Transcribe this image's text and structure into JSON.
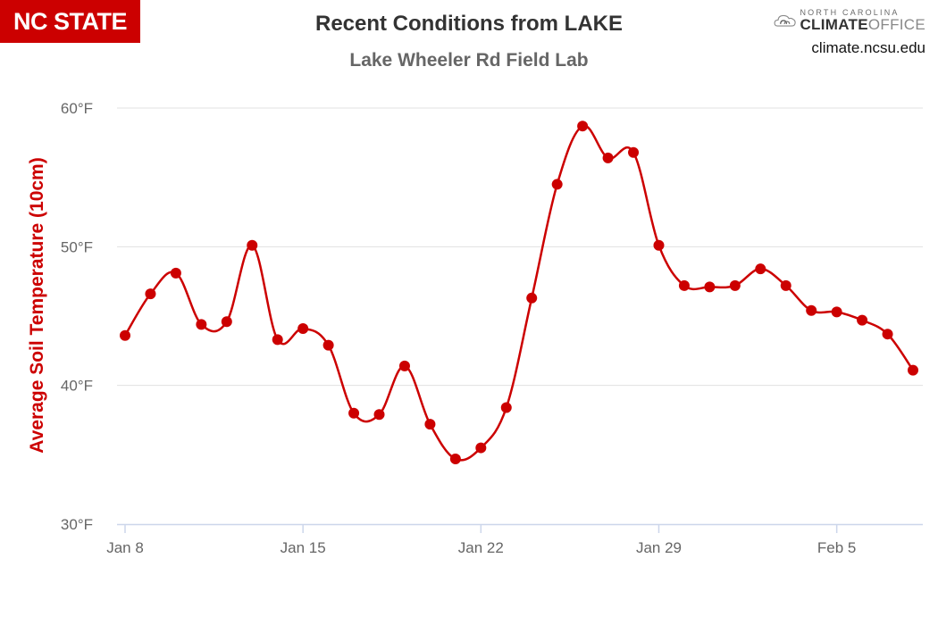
{
  "header": {
    "logo_text": "NC STATE",
    "brand_small": "NORTH CAROLINA",
    "brand_big_a": "CLIMATE",
    "brand_big_b": "OFFICE",
    "brand_url": "climate.ncsu.edu"
  },
  "colors": {
    "series": "#cc0000",
    "grid": "#e0e0e0",
    "axis": "#ccd6eb"
  },
  "chart_data": {
    "type": "line",
    "title": "Recent Conditions from LAKE",
    "subtitle": "Lake Wheeler Rd Field Lab",
    "ylabel": "Average Soil Temperature (10cm)",
    "xlabel": "",
    "ylim": [
      30,
      60
    ],
    "yticks": [
      {
        "value": 30,
        "label": "30°F"
      },
      {
        "value": 40,
        "label": "40°F"
      },
      {
        "value": 50,
        "label": "50°F"
      },
      {
        "value": 60,
        "label": "60°F"
      }
    ],
    "xticks": [
      {
        "day": 0,
        "label": "Jan 8"
      },
      {
        "day": 7,
        "label": "Jan 15"
      },
      {
        "day": 14,
        "label": "Jan 22"
      },
      {
        "day": 21,
        "label": "Jan 29"
      },
      {
        "day": 28,
        "label": "Feb 5"
      }
    ],
    "grid": true,
    "legend": "none",
    "x": [
      "Jan 8",
      "Jan 9",
      "Jan 10",
      "Jan 11",
      "Jan 12",
      "Jan 13",
      "Jan 14",
      "Jan 15",
      "Jan 16",
      "Jan 17",
      "Jan 18",
      "Jan 19",
      "Jan 20",
      "Jan 21",
      "Jan 22",
      "Jan 23",
      "Jan 24",
      "Jan 25",
      "Jan 26",
      "Jan 27",
      "Jan 28",
      "Jan 29",
      "Jan 30",
      "Jan 31",
      "Feb 1",
      "Feb 2",
      "Feb 3",
      "Feb 4",
      "Feb 5",
      "Feb 6",
      "Feb 7",
      "Feb 8"
    ],
    "series": [
      {
        "values": [
          43.6,
          46.6,
          48.1,
          44.4,
          44.6,
          50.1,
          43.3,
          44.1,
          42.9,
          38.0,
          37.9,
          41.4,
          37.2,
          34.7,
          35.5,
          38.4,
          46.3,
          54.5,
          58.7,
          56.4,
          56.8,
          50.1,
          47.2,
          47.1,
          47.2,
          48.4,
          47.2,
          45.4,
          45.3,
          44.7,
          43.7,
          41.1
        ]
      }
    ]
  }
}
